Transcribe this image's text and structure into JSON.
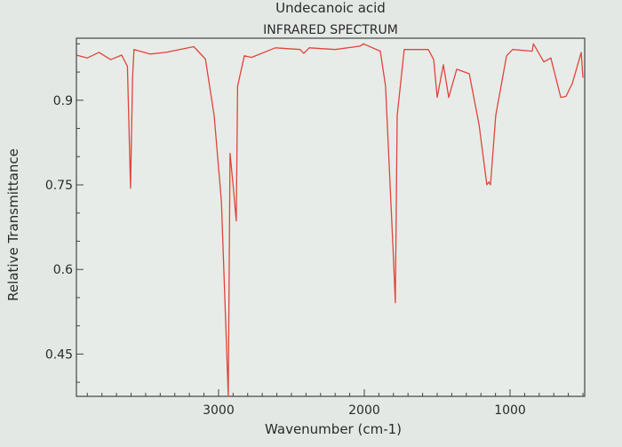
{
  "chart_data": {
    "type": "line",
    "title": "Undecanoic acid",
    "subtitle": "INFRARED SPECTRUM",
    "xlabel": "Wavenumber (cm-1)",
    "ylabel": "Relative Transmittance",
    "xlim": [
      3975,
      488
    ],
    "ylim": [
      0.375,
      1.01
    ],
    "x_ticks": [
      3000,
      2000,
      1000
    ],
    "x_tick_labels": [
      "3000",
      "2000",
      "1000"
    ],
    "x_minor_step": 100,
    "y_ticks": [
      0.45,
      0.6,
      0.75,
      0.9
    ],
    "y_tick_labels": [
      "0.45",
      "0.6",
      "0.75",
      "0.9"
    ],
    "y_minor_step": 0.05,
    "grid": false,
    "series": [
      {
        "name": "Undecanoic acid",
        "color": "#e0453a",
        "x": [
          3975,
          3900,
          3820,
          3740,
          3665,
          3625,
          3604,
          3590,
          3580,
          3470,
          3360,
          3170,
          3090,
          3030,
          2980,
          2933,
          2921,
          2900,
          2878,
          2869,
          2823,
          2774,
          2610,
          2440,
          2415,
          2378,
          2200,
          2030,
          2006,
          1890,
          1854,
          1800,
          1787,
          1774,
          1726,
          1561,
          1524,
          1500,
          1457,
          1421,
          1366,
          1280,
          1213,
          1159,
          1146,
          1134,
          1098,
          1024,
          982,
          848,
          840,
          768,
          720,
          652,
          616,
          573,
          512,
          500
        ],
        "y": [
          0.98,
          0.975,
          0.985,
          0.972,
          0.98,
          0.96,
          0.744,
          0.94,
          0.99,
          0.982,
          0.985,
          0.995,
          0.973,
          0.873,
          0.72,
          0.37,
          0.806,
          0.75,
          0.686,
          0.925,
          0.979,
          0.976,
          0.993,
          0.99,
          0.983,
          0.993,
          0.99,
          0.996,
          1.0,
          0.987,
          0.925,
          0.62,
          0.541,
          0.873,
          0.99,
          0.99,
          0.972,
          0.905,
          0.963,
          0.905,
          0.955,
          0.947,
          0.857,
          0.75,
          0.755,
          0.75,
          0.873,
          0.979,
          0.99,
          0.987,
          1.0,
          0.968,
          0.975,
          0.905,
          0.907,
          0.93,
          0.985,
          0.94
        ]
      }
    ]
  }
}
